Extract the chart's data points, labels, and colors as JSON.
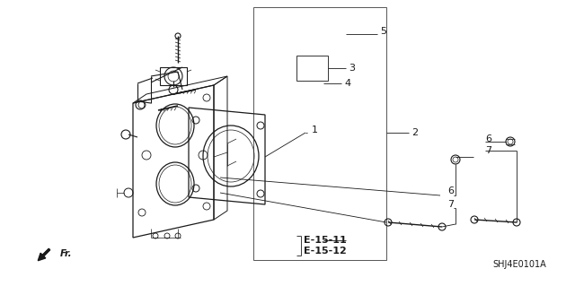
{
  "bg_color": "#ffffff",
  "fig_width": 6.4,
  "fig_height": 3.19,
  "dpi": 100,
  "lc": "#1a1a1a",
  "tc": "#1a1a1a",
  "lw_main": 0.8,
  "lw_thin": 0.5,
  "lw_leader": 0.6,
  "font_size_label": 8,
  "font_size_ref": 7,
  "font_size_partnum": 7,
  "part_number": "SHJ4E0101A",
  "ref1": "E-15-11",
  "ref2": "E-15-12"
}
